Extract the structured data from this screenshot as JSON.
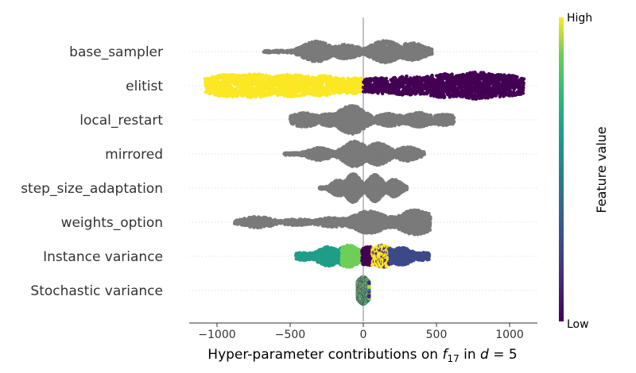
{
  "chart_data": {
    "type": "scatter",
    "subtype": "beeswarm",
    "xlabel_prefix": "Hyper-parameter contributions on ",
    "xlabel_f": "f",
    "xlabel_sub": "17",
    "xlabel_mid": " in ",
    "xlabel_d": "d",
    "xlabel_eq": " = 5",
    "xlim": [
      -1190,
      1190
    ],
    "xticks": [
      {
        "value": -1000,
        "label": "−1000"
      },
      {
        "value": -500,
        "label": "−500"
      },
      {
        "value": 0,
        "label": "0"
      },
      {
        "value": 500,
        "label": "500"
      },
      {
        "value": 1000,
        "label": "1000"
      }
    ],
    "colorbar": {
      "title": "Feature value",
      "high": "High",
      "low": "Low",
      "colormap": "viridis"
    },
    "grid": "dotted horizontal rows",
    "features": [
      {
        "name": "base_sampler",
        "color_mode": "gray",
        "lo": -680,
        "hi": 470,
        "bands": [
          {
            "x": -320,
            "h": 13
          },
          {
            "x": -120,
            "h": 9
          },
          {
            "x": 150,
            "h": 14
          },
          {
            "x": 330,
            "h": 11
          }
        ]
      },
      {
        "name": "elitist",
        "color_mode": "split",
        "lo": -1080,
        "hi": 1100,
        "bands": [
          {
            "x": -920,
            "h": 14
          },
          {
            "x": -750,
            "h": 15
          },
          {
            "x": -500,
            "h": 14
          },
          {
            "x": -300,
            "h": 13
          },
          {
            "x": -80,
            "h": 10
          },
          {
            "x": 120,
            "h": 10
          },
          {
            "x": 300,
            "h": 12
          },
          {
            "x": 560,
            "h": 15
          },
          {
            "x": 780,
            "h": 17
          },
          {
            "x": 950,
            "h": 14
          }
        ]
      },
      {
        "name": "local_restart",
        "color_mode": "gray",
        "lo": -500,
        "hi": 620,
        "bands": [
          {
            "x": -400,
            "h": 9
          },
          {
            "x": -220,
            "h": 8
          },
          {
            "x": -80,
            "h": 18
          },
          {
            "x": 180,
            "h": 8
          },
          {
            "x": 380,
            "h": 9
          },
          {
            "x": 550,
            "h": 7
          }
        ]
      },
      {
        "name": "mirrored",
        "color_mode": "gray",
        "lo": -540,
        "hi": 420,
        "bands": [
          {
            "x": -300,
            "h": 8
          },
          {
            "x": -60,
            "h": 16
          },
          {
            "x": 100,
            "h": 14
          },
          {
            "x": 300,
            "h": 9
          }
        ]
      },
      {
        "name": "step_size_adaptation",
        "color_mode": "gray",
        "lo": -300,
        "hi": 300,
        "bands": [
          {
            "x": -170,
            "h": 10
          },
          {
            "x": -70,
            "h": 18
          },
          {
            "x": 80,
            "h": 17
          },
          {
            "x": 210,
            "h": 11
          }
        ]
      },
      {
        "name": "weights_option",
        "color_mode": "gray",
        "lo": -880,
        "hi": 460,
        "bands": [
          {
            "x": -720,
            "h": 7
          },
          {
            "x": -450,
            "h": 4
          },
          {
            "x": -200,
            "h": 6
          },
          {
            "x": 40,
            "h": 14
          },
          {
            "x": 180,
            "h": 7
          },
          {
            "x": 360,
            "h": 16
          }
        ]
      },
      {
        "name": "Instance variance",
        "color_mode": "instance",
        "lo": -460,
        "hi": 450,
        "bands": [
          {
            "x": -400,
            "h": 5
          },
          {
            "x": -240,
            "h": 12
          },
          {
            "x": -100,
            "h": 14
          },
          {
            "x": 40,
            "h": 12
          },
          {
            "x": 130,
            "h": 14
          },
          {
            "x": 260,
            "h": 11
          },
          {
            "x": 400,
            "h": 5
          }
        ]
      },
      {
        "name": "Stochastic variance",
        "color_mode": "random",
        "lo": -40,
        "hi": 40,
        "bands": [
          {
            "x": 0,
            "h": 17
          }
        ]
      }
    ]
  }
}
